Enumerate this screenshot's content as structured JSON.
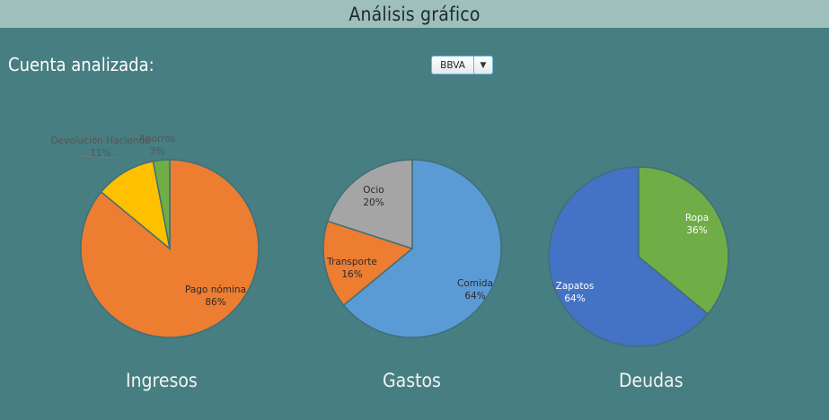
{
  "window": {
    "title": "Análisis gráfico"
  },
  "account": {
    "label": "Cuenta analizada:",
    "selected": "BBVA",
    "dropdown_icon": "chevron-down-icon"
  },
  "colors": {
    "background": "#477e82",
    "titlebar": "#9ebfba",
    "orange": "#ed7d31",
    "yellow": "#ffc000",
    "green": "#70ad47",
    "light_blue": "#5b9bd5",
    "gray": "#a5a5a5",
    "dark_blue": "#4472c4"
  },
  "chart_data": [
    {
      "type": "pie",
      "title": "Ingresos",
      "slices": [
        {
          "name": "Pago nómina",
          "value": 86,
          "label": "86%",
          "color": "#ed7d31"
        },
        {
          "name": "Devolución Hacienda",
          "value": 11,
          "label": "11%",
          "color": "#ffc000"
        },
        {
          "name": "Ahorros",
          "value": 3,
          "label": "3%",
          "color": "#70ad47"
        }
      ]
    },
    {
      "type": "pie",
      "title": "Gastos",
      "slices": [
        {
          "name": "Comida",
          "value": 64,
          "label": "64%",
          "color": "#5b9bd5"
        },
        {
          "name": "Transporte",
          "value": 16,
          "label": "16%",
          "color": "#ed7d31"
        },
        {
          "name": "Ocio",
          "value": 20,
          "label": "20%",
          "color": "#a5a5a5"
        }
      ]
    },
    {
      "type": "pie",
      "title": "Deudas",
      "slices": [
        {
          "name": "Ropa",
          "value": 36,
          "label": "36%",
          "color": "#70ad47"
        },
        {
          "name": "Zapatos",
          "value": 64,
          "label": "64%",
          "color": "#4472c4"
        }
      ]
    }
  ]
}
